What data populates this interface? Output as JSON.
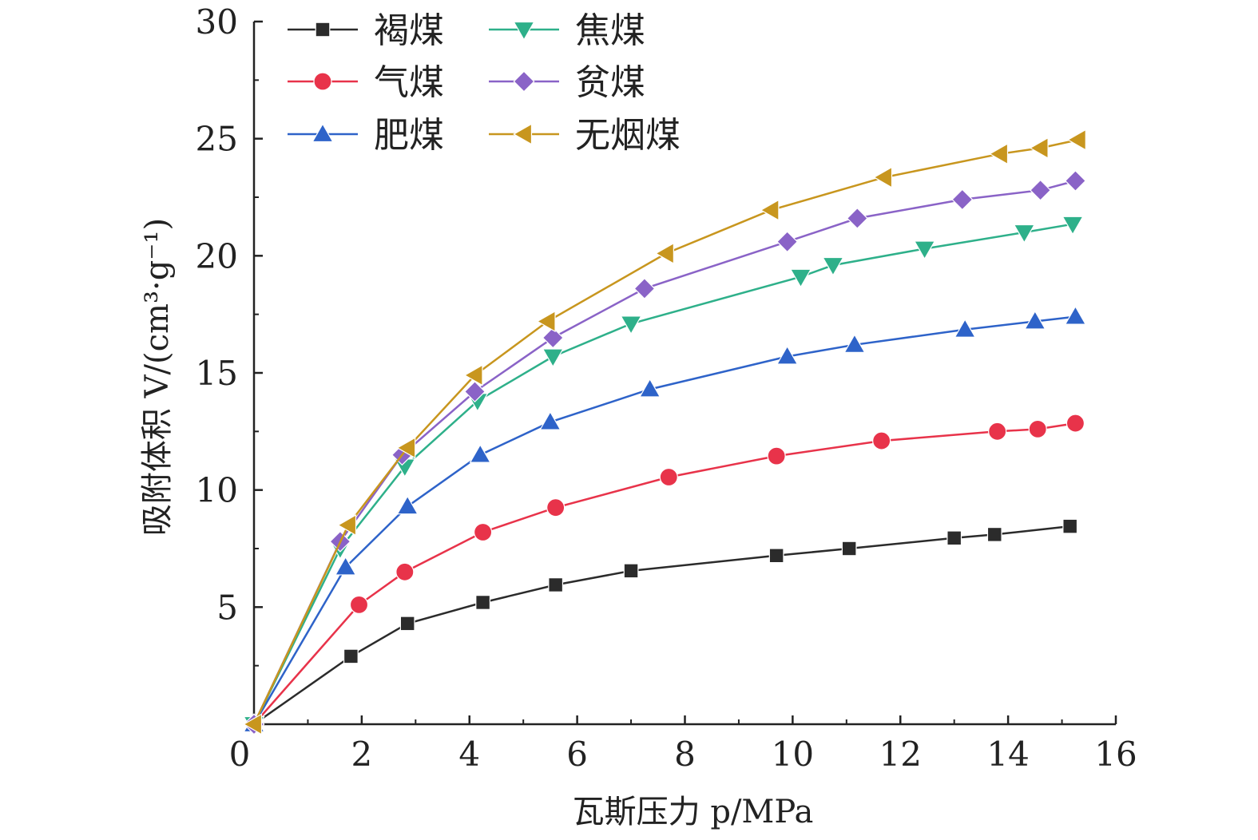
{
  "chart_data": {
    "type": "line",
    "xlabel": "瓦斯压力 p/MPa",
    "ylabel": "吸附体积 V/(cm³·g⁻¹)",
    "xlim": [
      0,
      16
    ],
    "ylim": [
      0,
      30
    ],
    "xticks": [
      "0",
      "2",
      "4",
      "6",
      "8",
      "10",
      "12",
      "14",
      "16"
    ],
    "yticks": [
      "5",
      "10",
      "15",
      "20",
      "25",
      "30"
    ],
    "xtick_values": [
      0,
      2,
      4,
      6,
      8,
      10,
      12,
      14,
      16
    ],
    "ytick_values": [
      5,
      10,
      15,
      20,
      25,
      30
    ],
    "grid": false,
    "legend_position": "top-left",
    "series": [
      {
        "name": "褐煤",
        "marker": "square",
        "color": "#2b2b2b",
        "x": [
          0,
          1.8,
          2.85,
          4.25,
          5.6,
          7.0,
          9.7,
          11.05,
          13.0,
          13.75,
          15.15
        ],
        "y": [
          0,
          2.9,
          4.3,
          5.2,
          5.95,
          6.55,
          7.2,
          7.5,
          7.95,
          8.1,
          8.45
        ]
      },
      {
        "name": "气煤",
        "marker": "circle",
        "color": "#e8334a",
        "x": [
          0,
          1.95,
          2.8,
          4.25,
          5.6,
          7.7,
          9.7,
          11.65,
          13.8,
          14.55,
          15.25
        ],
        "y": [
          0,
          5.1,
          6.5,
          8.2,
          9.25,
          10.55,
          11.45,
          12.1,
          12.5,
          12.6,
          12.85
        ]
      },
      {
        "name": "肥煤",
        "marker": "triangle-up",
        "color": "#2e63c9",
        "x": [
          0,
          1.7,
          2.85,
          4.2,
          5.5,
          7.35,
          9.9,
          11.15,
          13.2,
          14.5,
          15.25
        ],
        "y": [
          0,
          6.7,
          9.3,
          11.5,
          12.9,
          14.3,
          15.7,
          16.2,
          16.85,
          17.2,
          17.4
        ]
      },
      {
        "name": "焦煤",
        "marker": "triangle-down",
        "color": "#2eb08a",
        "x": [
          0,
          1.6,
          2.8,
          4.15,
          5.55,
          7.0,
          10.15,
          10.75,
          12.45,
          14.3,
          15.2
        ],
        "y": [
          0,
          7.5,
          11.0,
          13.8,
          15.7,
          17.1,
          19.1,
          19.6,
          20.3,
          21.0,
          21.35
        ]
      },
      {
        "name": "贫煤",
        "marker": "diamond",
        "color": "#8a63c7",
        "x": [
          0,
          1.6,
          2.75,
          4.1,
          5.55,
          7.25,
          9.9,
          11.2,
          13.15,
          14.6,
          15.25
        ],
        "y": [
          0,
          7.8,
          11.5,
          14.2,
          16.5,
          18.6,
          20.6,
          21.6,
          22.4,
          22.8,
          23.2
        ]
      },
      {
        "name": "无烟煤",
        "marker": "triangle-left",
        "color": "#c8961e",
        "x": [
          0,
          1.75,
          2.85,
          4.1,
          5.45,
          7.65,
          9.6,
          11.7,
          13.85,
          14.6,
          15.3
        ],
        "y": [
          0,
          8.5,
          11.8,
          14.9,
          17.2,
          20.1,
          21.95,
          23.35,
          24.35,
          24.6,
          24.95
        ]
      }
    ]
  }
}
